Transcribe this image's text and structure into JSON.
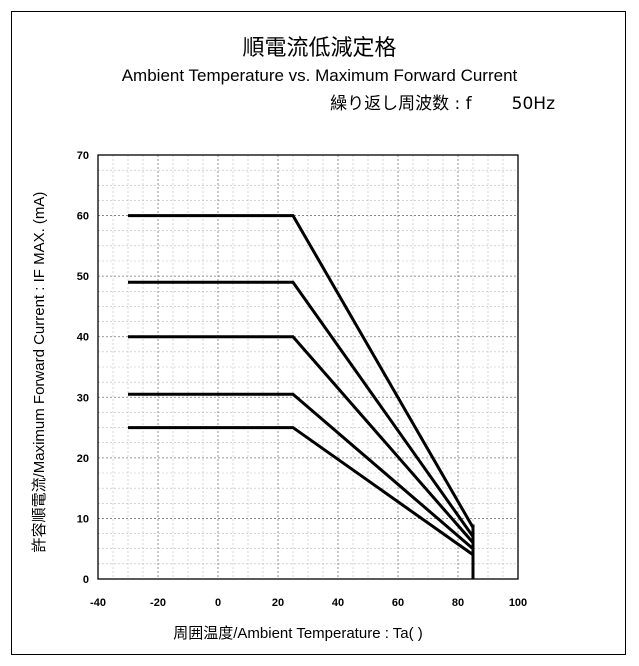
{
  "header": {
    "title": "順電流低減定格",
    "subtitle": "Ambient Temperature vs. Maximum Forward Current",
    "freq_label": "繰り返し周波数 : f",
    "freq_value": "50Hz"
  },
  "chart_data": {
    "type": "line",
    "xlabel": "周囲温度/Ambient Temperature : Ta(   )",
    "ylabel": "許容順電流/Maximum Forward Current : IF MAX. (mA)",
    "xlim": [
      -40,
      100
    ],
    "ylim": [
      0,
      70
    ],
    "xticks": [
      -40,
      -20,
      0,
      20,
      40,
      60,
      80,
      100
    ],
    "yticks": [
      0,
      10,
      20,
      30,
      40,
      50,
      60,
      70
    ],
    "grid": true,
    "series": [
      {
        "x": [
          -30,
          25,
          85
        ],
        "y": [
          60,
          60,
          8.5
        ]
      },
      {
        "x": [
          -30,
          25,
          85
        ],
        "y": [
          49,
          49,
          7
        ]
      },
      {
        "x": [
          -30,
          25,
          85
        ],
        "y": [
          40,
          40,
          6
        ]
      },
      {
        "x": [
          -30,
          25,
          85
        ],
        "y": [
          30.5,
          30.5,
          5
        ]
      },
      {
        "x": [
          -30,
          25,
          85
        ],
        "y": [
          25,
          25,
          4
        ]
      }
    ],
    "annotations": [
      {
        "type": "vline",
        "x": 85,
        "y": [
          0,
          9
        ]
      }
    ]
  }
}
